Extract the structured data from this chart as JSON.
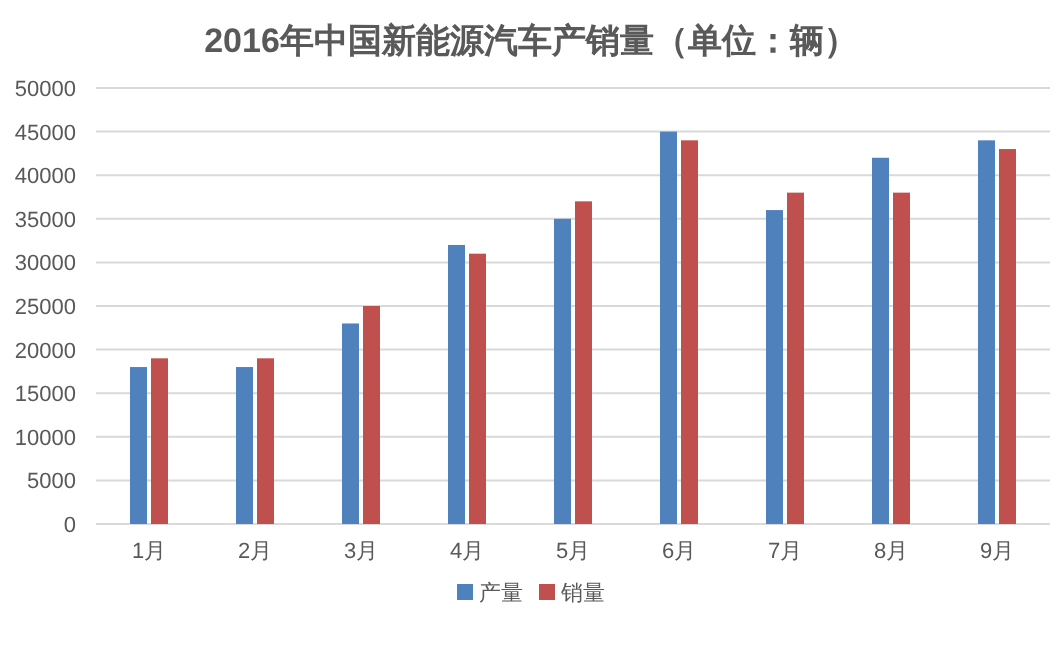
{
  "chart_data": {
    "type": "bar",
    "title": "2016年中国新能源汽车产销量（单位：辆）",
    "categories": [
      "1月",
      "2月",
      "3月",
      "4月",
      "5月",
      "6月",
      "7月",
      "8月",
      "9月"
    ],
    "series": [
      {
        "name": "产量",
        "color": "#4f81bd",
        "values": [
          18000,
          18000,
          23000,
          32000,
          35000,
          45000,
          36000,
          42000,
          44000
        ]
      },
      {
        "name": "销量",
        "color": "#c0504d",
        "values": [
          19000,
          19000,
          25000,
          31000,
          37000,
          44000,
          38000,
          38000,
          43000
        ]
      }
    ],
    "ylim": [
      0,
      50000
    ],
    "yticks": [
      0,
      5000,
      10000,
      15000,
      20000,
      25000,
      30000,
      35000,
      40000,
      45000,
      50000
    ],
    "grid": "y",
    "legend": "bottom"
  }
}
